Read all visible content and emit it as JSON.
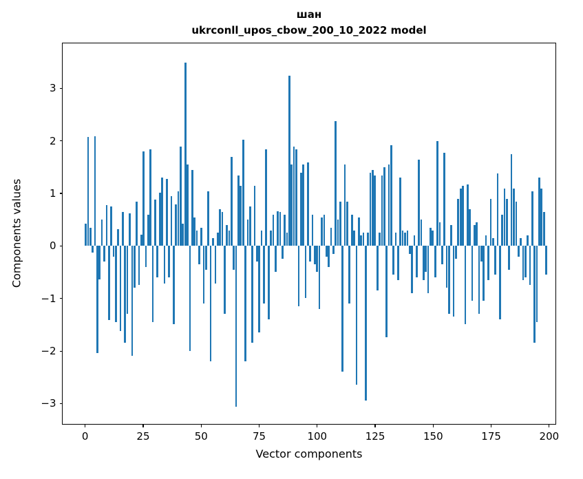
{
  "chart_data": {
    "type": "bar",
    "title": "шан",
    "subtitle": "ukrconll_upos_cbow_200_10_2022 model",
    "xlabel": "Vector components",
    "ylabel": "Components values",
    "bar_color": "#1f77b4",
    "xlim": [
      -10,
      203
    ],
    "ylim": [
      -3.4,
      3.87
    ],
    "xticks": [
      0,
      25,
      50,
      75,
      100,
      125,
      150,
      175,
      200
    ],
    "yticks": [
      -3,
      -2,
      -1,
      0,
      1,
      2,
      3
    ],
    "x_start": 0,
    "values": [
      0.42,
      2.08,
      0.35,
      -0.12,
      2.1,
      -2.05,
      -0.64,
      0.5,
      -0.3,
      0.78,
      -1.42,
      0.76,
      -0.2,
      -1.45,
      0.32,
      -1.62,
      0.65,
      -1.85,
      -1.3,
      0.62,
      -2.1,
      -0.8,
      0.85,
      -0.74,
      0.22,
      1.8,
      -0.4,
      0.6,
      1.85,
      -1.45,
      0.88,
      -0.6,
      1.02,
      1.3,
      -0.72,
      1.28,
      -0.6,
      0.95,
      -1.5,
      0.8,
      1.05,
      1.9,
      0.42,
      3.5,
      1.55,
      -2.0,
      1.45,
      0.55,
      0.3,
      -0.35,
      0.35,
      -1.1,
      -0.45,
      1.05,
      -2.2,
      0.15,
      -0.72,
      0.25,
      0.7,
      0.65,
      -1.3,
      0.4,
      0.3,
      1.7,
      -0.45,
      -3.07,
      1.35,
      1.15,
      2.03,
      -2.2,
      0.5,
      0.75,
      -1.85,
      1.15,
      -0.3,
      -1.65,
      0.3,
      -1.1,
      1.85,
      -1.4,
      0.3,
      0.6,
      -0.5,
      0.66,
      0.65,
      -0.25,
      0.6,
      0.25,
      3.25,
      1.55,
      1.9,
      1.85,
      -1.15,
      1.4,
      1.55,
      -1.0,
      1.6,
      -0.3,
      0.6,
      -0.35,
      -0.5,
      -1.2,
      0.55,
      0.6,
      -0.2,
      -0.4,
      0.35,
      -0.15,
      2.38,
      0.5,
      0.85,
      -2.4,
      1.55,
      0.85,
      -1.1,
      0.6,
      0.3,
      -2.65,
      0.55,
      0.2,
      0.25,
      -2.95,
      0.25,
      1.4,
      1.45,
      1.35,
      -0.85,
      0.25,
      1.35,
      1.5,
      -1.75,
      1.55,
      1.93,
      -0.55,
      0.25,
      -0.65,
      1.3,
      0.3,
      0.25,
      0.3,
      -0.15,
      -0.9,
      0.2,
      -0.6,
      1.65,
      0.5,
      -0.65,
      -0.5,
      -0.9,
      0.35,
      0.3,
      -0.6,
      2.0,
      0.45,
      -0.35,
      1.78,
      -0.8,
      -1.3,
      0.4,
      -1.35,
      -0.25,
      0.9,
      1.1,
      1.15,
      -1.5,
      1.18,
      0.7,
      -1.05,
      0.4,
      0.45,
      -1.3,
      -0.3,
      -1.05,
      0.2,
      -0.65,
      0.9,
      0.15,
      -0.55,
      1.38,
      -1.4,
      0.6,
      1.1,
      0.9,
      -0.45,
      1.75,
      1.1,
      0.85,
      -0.2,
      0.15,
      -0.65,
      -0.6,
      0.2,
      -0.75,
      1.05,
      -1.85,
      -1.45,
      1.3,
      1.1,
      0.65,
      -0.55
    ]
  }
}
